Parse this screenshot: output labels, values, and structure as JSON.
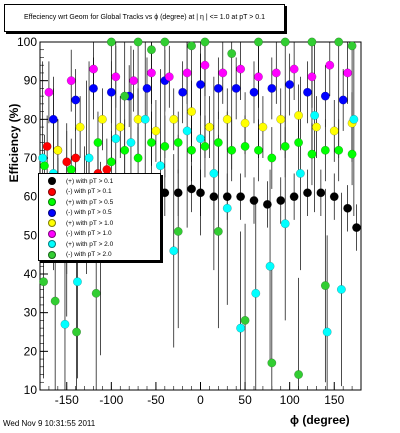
{
  "title": "Effeciency wrt Geom for Global Tracks vs ϕ (degree) at | η | <= 1.0 at pT > 0.1",
  "footer": "Wed Nov  9 10:31:55 2011",
  "chart_data": {
    "type": "scatter",
    "xlabel": "ϕ (degree)",
    "ylabel": "Efficiency (%)",
    "xlim": [
      -180,
      180
    ],
    "ylim": [
      10,
      100
    ],
    "xticks": [
      -150,
      -100,
      -50,
      0,
      50,
      100,
      150
    ],
    "yticks": [
      10,
      20,
      30,
      40,
      50,
      60,
      70,
      80,
      90,
      100
    ],
    "grid": false,
    "legend_position": "left-middle",
    "series": [
      {
        "name": "(+) with pT > 0.1",
        "color": "#000000",
        "x": [
          -170,
          -150,
          -135,
          -125,
          -110,
          -95,
          -80,
          -65,
          -50,
          -40,
          -25,
          -10,
          0,
          15,
          30,
          45,
          60,
          75,
          90,
          105,
          120,
          135,
          150,
          165,
          175
        ],
        "y": [
          51,
          46,
          52,
          55,
          57,
          58,
          59,
          59,
          60,
          61,
          61,
          62,
          61,
          60,
          60,
          60,
          59,
          58,
          59,
          60,
          61,
          61,
          60,
          57,
          52
        ]
      },
      {
        "name": "(-) with pT > 0.1",
        "color": "#ff0000",
        "x": [
          -172,
          -160,
          -150,
          -140,
          -125,
          -115,
          -105
        ],
        "y": [
          73,
          72,
          69,
          70,
          63,
          66,
          67
        ]
      },
      {
        "name": "(+) with pT > 0.5",
        "color": "#00ff00",
        "x": [
          -175,
          -160,
          -145,
          -130,
          -115,
          -100,
          -85,
          -70,
          -55,
          -40,
          -25,
          -10,
          5,
          20,
          35,
          50,
          65,
          80,
          95,
          110,
          125,
          140,
          155,
          170
        ],
        "y": [
          68,
          62,
          67,
          65,
          74,
          69,
          72,
          70,
          74,
          73,
          74,
          72,
          73,
          74,
          72,
          73,
          72,
          70,
          73,
          74,
          71,
          72,
          72,
          71
        ]
      },
      {
        "name": "(-) with pT > 0.5",
        "color": "#0000ff",
        "x": [
          -165,
          -140,
          -120,
          -100,
          -80,
          -60,
          -40,
          -20,
          0,
          20,
          40,
          60,
          80,
          100,
          120,
          140,
          160
        ],
        "y": [
          80,
          85,
          88,
          87,
          86,
          88,
          90,
          87,
          89,
          88,
          88,
          87,
          88,
          89,
          87,
          86,
          85
        ]
      },
      {
        "name": "(+) with pT > 1.0",
        "color": "#ffff00",
        "x": [
          -160,
          -135,
          -110,
          -90,
          -70,
          -50,
          -30,
          -10,
          10,
          30,
          50,
          70,
          90,
          110,
          130,
          150,
          170
        ],
        "y": [
          72,
          78,
          80,
          78,
          80,
          77,
          80,
          82,
          78,
          80,
          79,
          78,
          80,
          81,
          78,
          77,
          79
        ]
      },
      {
        "name": "(-) with pT > 1.0",
        "color": "#ff00ff",
        "x": [
          -170,
          -145,
          -120,
          -95,
          -75,
          -55,
          -35,
          -15,
          5,
          25,
          45,
          65,
          85,
          105,
          125,
          145,
          165
        ],
        "y": [
          87,
          90,
          93,
          91,
          90,
          92,
          91,
          92,
          94,
          92,
          93,
          91,
          92,
          93,
          91,
          94,
          92
        ]
      },
      {
        "name": "(+) with pT > 2.0",
        "color": "#00ffff",
        "x": [
          -177,
          -165,
          -152,
          -138,
          -125,
          -112,
          -95,
          -78,
          -62,
          -45,
          -30,
          -15,
          0,
          15,
          30,
          45,
          62,
          78,
          95,
          112,
          128,
          142,
          158,
          172
        ],
        "y": [
          70,
          66,
          27,
          38,
          70,
          44,
          75,
          74,
          80,
          68,
          46,
          77,
          75,
          66,
          57,
          26,
          35,
          42,
          53,
          66,
          81,
          25,
          36,
          80
        ]
      },
      {
        "name": "(-) with pT > 2.0",
        "color": "#32cd32",
        "x": [
          -176,
          -163,
          -150,
          -139,
          -128,
          -117,
          -100,
          -85,
          -70,
          -55,
          -40,
          -25,
          -10,
          5,
          20,
          35,
          50,
          65,
          80,
          95,
          110,
          125,
          140,
          155,
          170
        ],
        "y": [
          38,
          33,
          54,
          25,
          65,
          35,
          100,
          86,
          100,
          98,
          100,
          51,
          99,
          100,
          51,
          97,
          28,
          100,
          17,
          100,
          14,
          100,
          37,
          100,
          99
        ]
      }
    ]
  }
}
